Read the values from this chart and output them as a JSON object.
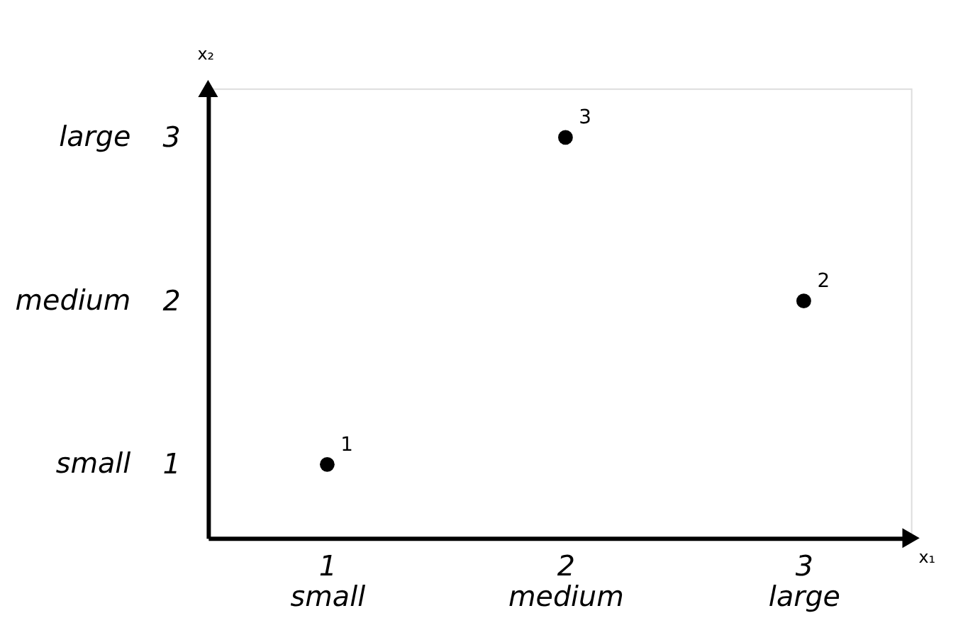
{
  "chart_data": {
    "type": "scatter",
    "xlabel": "x₁",
    "ylabel": "x₂",
    "x": [
      1,
      3,
      2
    ],
    "values": [
      1,
      2,
      3
    ],
    "color": "#000000",
    "marker": "circle",
    "xlim": [
      0.5,
      3.45
    ],
    "ylim": [
      0.55,
      3.3
    ],
    "xticks": [
      {
        "value": 1,
        "label": "1\nsmall"
      },
      {
        "value": 2,
        "label": "2\nmedium"
      },
      {
        "value": 3,
        "label": "3\nlarge"
      }
    ],
    "yticks": [
      1,
      2,
      3
    ],
    "annotations": [
      {
        "text": "1",
        "x": 1,
        "y": 1
      },
      {
        "text": "2",
        "x": 3,
        "y": 2
      },
      {
        "text": "3",
        "x": 2,
        "y": 3
      },
      "small",
      "medium",
      "large"
    ],
    "grid": false
  }
}
